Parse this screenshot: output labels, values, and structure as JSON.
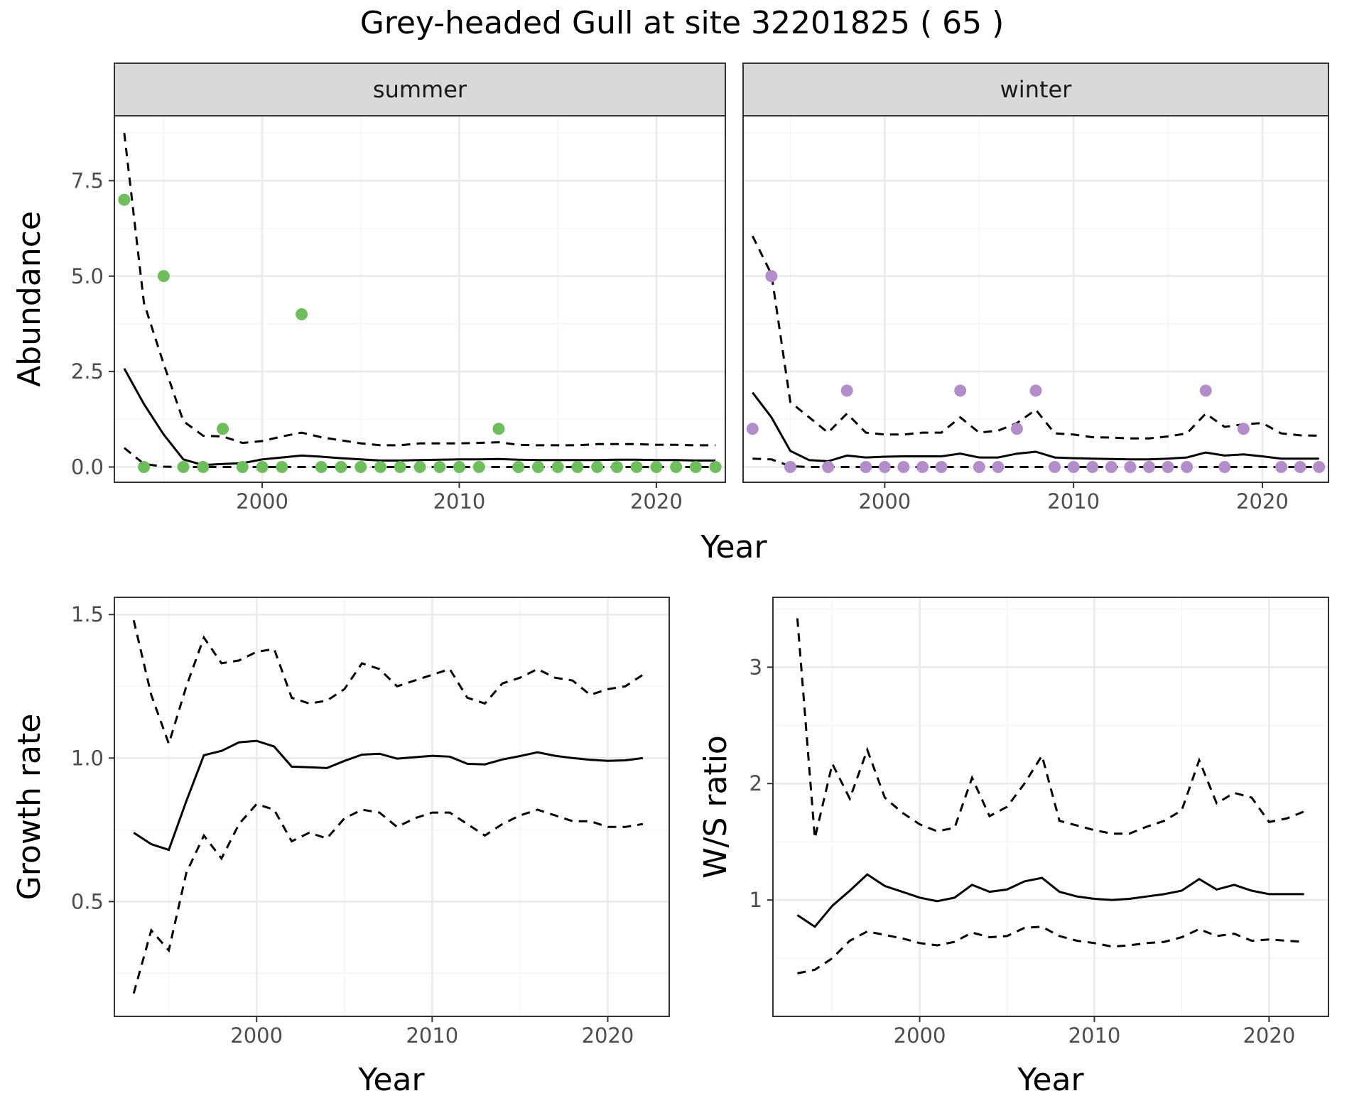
{
  "title": "Grey-headed Gull at site 32201825 ( 65 )",
  "colors": {
    "summer_points": "#6dbf5c",
    "winter_points": "#b38dc9",
    "lines": "#000000",
    "panel_border": "#333333",
    "grid_major": "#ebebeb",
    "strip_fill": "#d9d9d9"
  },
  "chart_data": [
    {
      "type": "scatter",
      "panel": "summer",
      "strip_label": "summer",
      "xlabel": "Year",
      "ylabel": "Abundance",
      "xlim": [
        1992.5,
        2023.5
      ],
      "ylim": [
        -0.4,
        9.2
      ],
      "x_ticks": [
        2000,
        2010,
        2020
      ],
      "y_ticks": [
        0.0,
        2.5,
        5.0,
        7.5
      ],
      "y_tick_labels": [
        "0.0",
        "2.5",
        "5.0",
        "7.5"
      ],
      "grid": true,
      "points": {
        "x": [
          1993,
          1994,
          1995,
          1996,
          1997,
          1998,
          1999,
          2000,
          2001,
          2002,
          2003,
          2004,
          2005,
          2006,
          2007,
          2008,
          2009,
          2010,
          2011,
          2012,
          2013,
          2014,
          2015,
          2016,
          2017,
          2018,
          2019,
          2020,
          2021,
          2022,
          2023
        ],
        "y": [
          7,
          0,
          5,
          0,
          0,
          1,
          0,
          0,
          0,
          4,
          0,
          0,
          0,
          0,
          0,
          0,
          0,
          0,
          0,
          1,
          0,
          0,
          0,
          0,
          0,
          0,
          0,
          0,
          0,
          0,
          0
        ]
      },
      "series": [
        {
          "style": "solid",
          "x": [
            1993,
            1994,
            1995,
            1996,
            1997,
            1998,
            1999,
            2000,
            2001,
            2002,
            2003,
            2004,
            2005,
            2006,
            2007,
            2008,
            2009,
            2010,
            2011,
            2012,
            2013,
            2014,
            2015,
            2016,
            2017,
            2018,
            2019,
            2020,
            2021,
            2022,
            2023
          ],
          "values": [
            2.58,
            1.65,
            0.85,
            0.2,
            0.05,
            0.08,
            0.1,
            0.2,
            0.25,
            0.3,
            0.27,
            0.23,
            0.2,
            0.17,
            0.17,
            0.18,
            0.19,
            0.2,
            0.2,
            0.21,
            0.19,
            0.18,
            0.18,
            0.18,
            0.18,
            0.19,
            0.19,
            0.18,
            0.18,
            0.17,
            0.17
          ]
        },
        {
          "style": "dashed",
          "x": [
            1993,
            1994,
            1995,
            1996,
            1997,
            1998,
            1999,
            2000,
            2001,
            2002,
            2003,
            2004,
            2005,
            2006,
            2007,
            2008,
            2009,
            2010,
            2011,
            2012,
            2013,
            2014,
            2015,
            2016,
            2017,
            2018,
            2019,
            2020,
            2021,
            2022,
            2023
          ],
          "values": [
            8.75,
            4.3,
            2.7,
            1.2,
            0.82,
            0.8,
            0.63,
            0.68,
            0.8,
            0.9,
            0.78,
            0.7,
            0.62,
            0.57,
            0.57,
            0.62,
            0.62,
            0.62,
            0.63,
            0.65,
            0.58,
            0.57,
            0.57,
            0.57,
            0.6,
            0.6,
            0.6,
            0.58,
            0.58,
            0.57,
            0.57
          ]
        },
        {
          "style": "dashed",
          "x": [
            1993,
            1994,
            1995,
            1996,
            1997,
            1998,
            1999,
            2000,
            2001,
            2002,
            2003,
            2004,
            2005,
            2006,
            2007,
            2008,
            2009,
            2010,
            2011,
            2012,
            2013,
            2014,
            2015,
            2016,
            2017,
            2018,
            2019,
            2020,
            2021,
            2022,
            2023
          ],
          "values": [
            0.5,
            0.08,
            0.01,
            0.0,
            0.0,
            0.0,
            0.0,
            0.0,
            0.0,
            0.0,
            0.0,
            0.0,
            0.0,
            0.0,
            0.0,
            0.0,
            0.0,
            0.0,
            0.0,
            0.0,
            0.0,
            0.0,
            0.0,
            0.0,
            0.0,
            0.0,
            0.0,
            0.0,
            0.0,
            0.0,
            0.0
          ]
        }
      ]
    },
    {
      "type": "scatter",
      "panel": "winter",
      "strip_label": "winter",
      "xlabel": "Year",
      "ylabel": "Abundance",
      "xlim": [
        1992.5,
        2023.5
      ],
      "ylim": [
        -0.4,
        9.2
      ],
      "x_ticks": [
        2000,
        2010,
        2020
      ],
      "y_ticks": [
        0.0,
        2.5,
        5.0,
        7.5
      ],
      "grid": true,
      "points": {
        "x": [
          1993,
          1994,
          1995,
          1997,
          1998,
          1999,
          2000,
          2001,
          2002,
          2003,
          2004,
          2005,
          2006,
          2007,
          2008,
          2009,
          2010,
          2011,
          2012,
          2013,
          2014,
          2015,
          2016,
          2017,
          2018,
          2019,
          2021,
          2022,
          2023
        ],
        "y": [
          1,
          5,
          0,
          0,
          2,
          0,
          0,
          0,
          0,
          0,
          2,
          0,
          0,
          1,
          2,
          0,
          0,
          0,
          0,
          0,
          0,
          0,
          0,
          2,
          0,
          1,
          0,
          0,
          0
        ]
      },
      "series": [
        {
          "style": "solid",
          "x": [
            1993,
            1994,
            1995,
            1996,
            1997,
            1998,
            1999,
            2000,
            2001,
            2002,
            2003,
            2004,
            2005,
            2006,
            2007,
            2008,
            2009,
            2010,
            2011,
            2012,
            2013,
            2014,
            2015,
            2016,
            2017,
            2018,
            2019,
            2020,
            2021,
            2022,
            2023
          ],
          "values": [
            1.95,
            1.3,
            0.42,
            0.18,
            0.15,
            0.3,
            0.25,
            0.27,
            0.28,
            0.28,
            0.28,
            0.35,
            0.25,
            0.25,
            0.35,
            0.4,
            0.25,
            0.23,
            0.22,
            0.21,
            0.2,
            0.2,
            0.22,
            0.25,
            0.38,
            0.3,
            0.33,
            0.28,
            0.22,
            0.22,
            0.22
          ]
        },
        {
          "style": "dashed",
          "x": [
            1993,
            1994,
            1995,
            1996,
            1997,
            1998,
            1999,
            2000,
            2001,
            2002,
            2003,
            2004,
            2005,
            2006,
            2007,
            2008,
            2009,
            2010,
            2011,
            2012,
            2013,
            2014,
            2015,
            2016,
            2017,
            2018,
            2019,
            2020,
            2021,
            2022,
            2023
          ],
          "values": [
            6.05,
            5.05,
            1.7,
            1.3,
            0.9,
            1.4,
            0.9,
            0.85,
            0.85,
            0.9,
            0.9,
            1.3,
            0.9,
            0.95,
            1.15,
            1.5,
            0.88,
            0.85,
            0.78,
            0.77,
            0.75,
            0.75,
            0.8,
            0.88,
            1.4,
            1.05,
            1.12,
            1.15,
            0.88,
            0.83,
            0.82
          ]
        },
        {
          "style": "dashed",
          "x": [
            1993,
            1994,
            1995,
            1996,
            1997,
            1998,
            1999,
            2000,
            2001,
            2002,
            2003,
            2004,
            2005,
            2006,
            2007,
            2008,
            2009,
            2010,
            2011,
            2012,
            2013,
            2014,
            2015,
            2016,
            2017,
            2018,
            2019,
            2020,
            2021,
            2022,
            2023
          ],
          "values": [
            0.22,
            0.2,
            0.02,
            0.0,
            0.0,
            0.0,
            0.0,
            0.0,
            0.0,
            0.0,
            0.0,
            0.0,
            0.0,
            0.0,
            0.0,
            0.0,
            0.0,
            0.0,
            0.0,
            0.0,
            0.0,
            0.0,
            0.0,
            0.0,
            0.0,
            0.0,
            0.0,
            0.0,
            0.0,
            0.0,
            0.0
          ]
        }
      ]
    },
    {
      "type": "line",
      "panel": "growth",
      "xlabel": "Year",
      "ylabel": "Growth rate",
      "xlim": [
        1991.9,
        2023.5
      ],
      "ylim": [
        0.1,
        1.56
      ],
      "x_ticks": [
        2000,
        2010,
        2020
      ],
      "y_ticks": [
        0.5,
        1.0,
        1.5
      ],
      "y_tick_labels": [
        "0.5",
        "1.0",
        "1.5"
      ],
      "grid": true,
      "series": [
        {
          "style": "solid",
          "x": [
            1993,
            1994,
            1995,
            1996,
            1997,
            1998,
            1999,
            2000,
            2001,
            2002,
            2003,
            2004,
            2005,
            2006,
            2007,
            2008,
            2009,
            2010,
            2011,
            2012,
            2013,
            2014,
            2015,
            2016,
            2017,
            2018,
            2019,
            2020,
            2021,
            2022
          ],
          "values": [
            0.74,
            0.7,
            0.68,
            0.85,
            1.01,
            1.025,
            1.055,
            1.06,
            1.04,
            0.97,
            0.968,
            0.965,
            0.99,
            1.012,
            1.015,
            0.998,
            1.003,
            1.008,
            1.005,
            0.98,
            0.978,
            0.995,
            1.007,
            1.02,
            1.008,
            1.0,
            0.994,
            0.99,
            0.992,
            1.0
          ]
        },
        {
          "style": "dashed",
          "x": [
            1993,
            1994,
            1995,
            1996,
            1997,
            1998,
            1999,
            2000,
            2001,
            2002,
            2003,
            2004,
            2005,
            2006,
            2007,
            2008,
            2009,
            2010,
            2011,
            2012,
            2013,
            2014,
            2015,
            2016,
            2017,
            2018,
            2019,
            2020,
            2021,
            2022
          ],
          "values": [
            1.48,
            1.22,
            1.05,
            1.25,
            1.42,
            1.33,
            1.34,
            1.37,
            1.38,
            1.21,
            1.19,
            1.2,
            1.24,
            1.33,
            1.31,
            1.25,
            1.27,
            1.29,
            1.31,
            1.21,
            1.19,
            1.26,
            1.28,
            1.31,
            1.28,
            1.27,
            1.22,
            1.24,
            1.25,
            1.29
          ]
        },
        {
          "style": "dashed",
          "x": [
            1993,
            1994,
            1995,
            1996,
            1997,
            1998,
            1999,
            2000,
            2001,
            2002,
            2003,
            2004,
            2005,
            2006,
            2007,
            2008,
            2009,
            2010,
            2011,
            2012,
            2013,
            2014,
            2015,
            2016,
            2017,
            2018,
            2019,
            2020,
            2021,
            2022
          ],
          "values": [
            0.18,
            0.4,
            0.33,
            0.6,
            0.73,
            0.65,
            0.77,
            0.84,
            0.82,
            0.71,
            0.74,
            0.72,
            0.79,
            0.82,
            0.81,
            0.76,
            0.79,
            0.81,
            0.81,
            0.77,
            0.73,
            0.77,
            0.8,
            0.82,
            0.8,
            0.78,
            0.78,
            0.76,
            0.76,
            0.77
          ]
        }
      ]
    },
    {
      "type": "line",
      "panel": "ws_ratio",
      "xlabel": "Year",
      "ylabel": "W/S ratio",
      "xlim": [
        1991.6,
        2023.4
      ],
      "ylim": [
        0.0,
        3.6
      ],
      "x_ticks": [
        2000,
        2010,
        2020
      ],
      "y_ticks": [
        1,
        2,
        3
      ],
      "y_tick_labels": [
        "1",
        "2",
        "3"
      ],
      "grid": true,
      "series": [
        {
          "style": "solid",
          "x": [
            1993,
            1994,
            1995,
            1996,
            1997,
            1998,
            1999,
            2000,
            2001,
            2002,
            2003,
            2004,
            2005,
            2006,
            2007,
            2008,
            2009,
            2010,
            2011,
            2012,
            2013,
            2014,
            2015,
            2016,
            2017,
            2018,
            2019,
            2020,
            2021,
            2022
          ],
          "values": [
            0.87,
            0.77,
            0.95,
            1.08,
            1.22,
            1.12,
            1.07,
            1.02,
            0.99,
            1.02,
            1.13,
            1.07,
            1.09,
            1.16,
            1.19,
            1.07,
            1.03,
            1.01,
            1.0,
            1.01,
            1.03,
            1.05,
            1.08,
            1.18,
            1.09,
            1.13,
            1.08,
            1.05,
            1.05,
            1.05
          ]
        },
        {
          "style": "dashed",
          "x": [
            1993,
            1994,
            1995,
            1996,
            1997,
            1998,
            1999,
            2000,
            2001,
            2002,
            2003,
            2004,
            2005,
            2006,
            2007,
            2008,
            2009,
            2010,
            2011,
            2012,
            2013,
            2014,
            2015,
            2016,
            2017,
            2018,
            2019,
            2020,
            2021,
            2022
          ],
          "values": [
            3.42,
            1.53,
            2.17,
            1.87,
            2.29,
            1.88,
            1.75,
            1.65,
            1.59,
            1.62,
            2.05,
            1.72,
            1.8,
            2.0,
            2.24,
            1.68,
            1.64,
            1.6,
            1.57,
            1.57,
            1.63,
            1.68,
            1.77,
            2.2,
            1.83,
            1.92,
            1.88,
            1.67,
            1.7,
            1.76
          ]
        },
        {
          "style": "dashed",
          "x": [
            1993,
            1994,
            1995,
            1996,
            1997,
            1998,
            1999,
            2000,
            2001,
            2002,
            2003,
            2004,
            2005,
            2006,
            2007,
            2008,
            2009,
            2010,
            2011,
            2012,
            2013,
            2014,
            2015,
            2016,
            2017,
            2018,
            2019,
            2020,
            2021,
            2022
          ],
          "values": [
            0.37,
            0.4,
            0.5,
            0.65,
            0.73,
            0.7,
            0.67,
            0.63,
            0.61,
            0.64,
            0.72,
            0.68,
            0.69,
            0.76,
            0.77,
            0.69,
            0.65,
            0.63,
            0.6,
            0.61,
            0.63,
            0.64,
            0.68,
            0.75,
            0.69,
            0.71,
            0.65,
            0.66,
            0.65,
            0.64
          ]
        }
      ]
    }
  ]
}
